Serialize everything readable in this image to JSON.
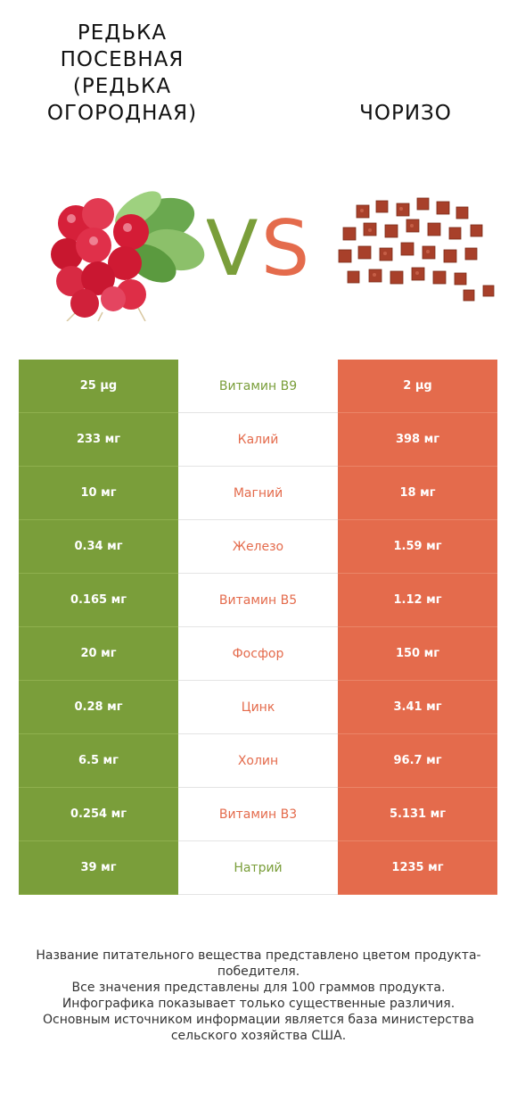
{
  "header": {
    "left_title": "Редька посевная (Редька огородная)",
    "right_title": "Чоризо",
    "vs_left": "V",
    "vs_right": "S"
  },
  "colors": {
    "left_accent": "#7a9e3a",
    "right_accent": "#e46b4c"
  },
  "images": {
    "left": "radish-image",
    "right": "chorizo-image"
  },
  "rows": [
    {
      "left": "25 µg",
      "nutrient": "Витамин B9",
      "right": "2 µg",
      "winner": "left"
    },
    {
      "left": "233 мг",
      "nutrient": "Калий",
      "right": "398 мг",
      "winner": "right"
    },
    {
      "left": "10 мг",
      "nutrient": "Магний",
      "right": "18 мг",
      "winner": "right"
    },
    {
      "left": "0.34 мг",
      "nutrient": "Железо",
      "right": "1.59 мг",
      "winner": "right"
    },
    {
      "left": "0.165 мг",
      "nutrient": "Витамин B5",
      "right": "1.12 мг",
      "winner": "right"
    },
    {
      "left": "20 мг",
      "nutrient": "Фосфор",
      "right": "150 мг",
      "winner": "right"
    },
    {
      "left": "0.28 мг",
      "nutrient": "Цинк",
      "right": "3.41 мг",
      "winner": "right"
    },
    {
      "left": "6.5 мг",
      "nutrient": "Холин",
      "right": "96.7 мг",
      "winner": "right"
    },
    {
      "left": "0.254 мг",
      "nutrient": "Витамин B3",
      "right": "5.131 мг",
      "winner": "right"
    },
    {
      "left": "39 мг",
      "nutrient": "Натрий",
      "right": "1235 мг",
      "winner": "left"
    }
  ],
  "footer": {
    "line1": "Название питательного вещества представлено цветом продукта-победителя.",
    "line2": "Все значения представлены для 100 граммов продукта.",
    "line3": "Инфографика показывает только существенные различия.",
    "line4": "Основным источником информации является база министерства сельского хозяйства США."
  }
}
